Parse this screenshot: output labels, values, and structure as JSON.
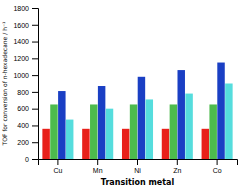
{
  "chart_data": {
    "type": "bar",
    "categories": [
      "Cu",
      "Mn",
      "Ni",
      "Zn",
      "Co"
    ],
    "series": [
      {
        "color": "#e8201a",
        "values": [
          360,
          360,
          360,
          360,
          360
        ]
      },
      {
        "color": "#4dbb4d",
        "values": [
          650,
          650,
          650,
          650,
          650
        ]
      },
      {
        "color": "#1a3fc4",
        "values": [
          810,
          870,
          980,
          1060,
          1150
        ]
      },
      {
        "color": "#55dddd",
        "values": [
          470,
          600,
          710,
          780,
          900
        ]
      }
    ],
    "xlabel": "Transition metal",
    "ylabel": "TOF for conversion of n-hexadecane / h⁻¹",
    "ylim": [
      0,
      1800
    ],
    "yticks": [
      0,
      200,
      400,
      600,
      800,
      1000,
      1200,
      1400,
      1600,
      1800
    ],
    "grid": false
  }
}
